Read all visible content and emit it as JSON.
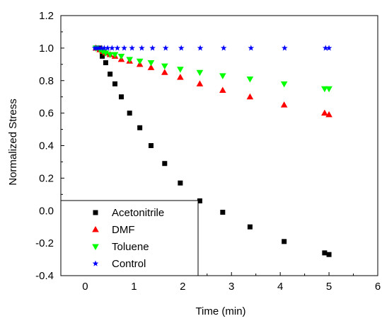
{
  "chart_data": {
    "type": "scatter",
    "xlabel": "Time (min)",
    "ylabel": "Normalized Stress",
    "xlim": [
      -0.5,
      6
    ],
    "ylim": [
      -0.4,
      1.2
    ],
    "xticks": [
      "0",
      "1",
      "2",
      "3",
      "4",
      "5",
      "6"
    ],
    "yticks": [
      "-0.4",
      "-0.2",
      "0.0",
      "0.2",
      "0.4",
      "0.6",
      "0.8",
      "1.0",
      "1.2"
    ],
    "legend_position": "bottom-left",
    "series": [
      {
        "name": "Acetonitrile",
        "marker": "square",
        "color": "#000000",
        "points": [
          [
            0.22,
            1.0
          ],
          [
            0.3,
            1.0
          ],
          [
            0.35,
            0.95
          ],
          [
            0.42,
            0.91
          ],
          [
            0.51,
            0.84
          ],
          [
            0.61,
            0.78
          ],
          [
            0.74,
            0.7
          ],
          [
            0.91,
            0.6
          ],
          [
            1.12,
            0.51
          ],
          [
            1.35,
            0.4
          ],
          [
            1.63,
            0.29
          ],
          [
            1.95,
            0.17
          ],
          [
            2.35,
            0.06
          ],
          [
            2.82,
            -0.01
          ],
          [
            3.38,
            -0.1
          ],
          [
            4.08,
            -0.19
          ],
          [
            4.91,
            -0.26
          ],
          [
            5.0,
            -0.27
          ]
        ]
      },
      {
        "name": "DMF",
        "marker": "triangle-up",
        "color": "#ff0000",
        "points": [
          [
            0.22,
            1.0
          ],
          [
            0.3,
            0.99
          ],
          [
            0.36,
            0.98
          ],
          [
            0.42,
            0.97
          ],
          [
            0.51,
            0.96
          ],
          [
            0.61,
            0.95
          ],
          [
            0.74,
            0.93
          ],
          [
            0.91,
            0.92
          ],
          [
            1.12,
            0.9
          ],
          [
            1.35,
            0.88
          ],
          [
            1.63,
            0.85
          ],
          [
            1.95,
            0.82
          ],
          [
            2.35,
            0.78
          ],
          [
            2.82,
            0.74
          ],
          [
            3.38,
            0.7
          ],
          [
            4.08,
            0.65
          ],
          [
            4.91,
            0.6
          ],
          [
            5.0,
            0.59
          ]
        ]
      },
      {
        "name": "Toluene",
        "marker": "triangle-down",
        "color": "#00ff00",
        "points": [
          [
            0.22,
            1.0
          ],
          [
            0.3,
            0.99
          ],
          [
            0.36,
            0.98
          ],
          [
            0.42,
            0.97
          ],
          [
            0.51,
            0.96
          ],
          [
            0.61,
            0.96
          ],
          [
            0.74,
            0.95
          ],
          [
            0.91,
            0.93
          ],
          [
            1.12,
            0.92
          ],
          [
            1.35,
            0.91
          ],
          [
            1.63,
            0.89
          ],
          [
            1.95,
            0.87
          ],
          [
            2.35,
            0.85
          ],
          [
            2.82,
            0.83
          ],
          [
            3.38,
            0.81
          ],
          [
            4.08,
            0.78
          ],
          [
            4.91,
            0.75
          ],
          [
            5.0,
            0.75
          ]
        ]
      },
      {
        "name": "Control",
        "marker": "star",
        "color": "#0000ff",
        "points": [
          [
            0.2,
            1.0
          ],
          [
            0.24,
            1.0
          ],
          [
            0.28,
            1.0
          ],
          [
            0.33,
            1.0
          ],
          [
            0.39,
            1.0
          ],
          [
            0.46,
            1.0
          ],
          [
            0.55,
            1.0
          ],
          [
            0.66,
            1.0
          ],
          [
            0.8,
            1.0
          ],
          [
            0.96,
            1.0
          ],
          [
            1.16,
            1.0
          ],
          [
            1.38,
            1.0
          ],
          [
            1.65,
            1.0
          ],
          [
            1.97,
            1.0
          ],
          [
            2.36,
            1.0
          ],
          [
            2.84,
            1.0
          ],
          [
            3.4,
            1.0
          ],
          [
            4.09,
            1.0
          ],
          [
            4.93,
            1.0
          ],
          [
            5.0,
            1.0
          ]
        ]
      }
    ]
  }
}
